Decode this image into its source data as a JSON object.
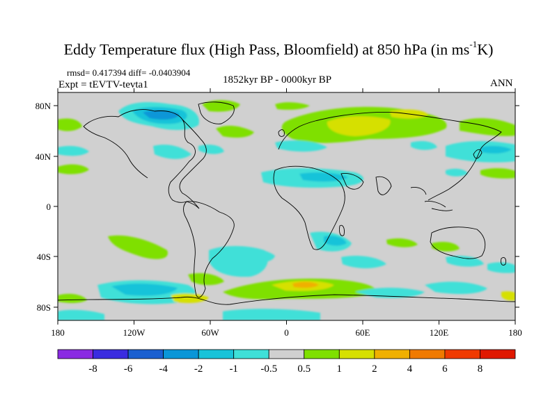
{
  "title": {
    "main": "Eddy Temperature flux (High Pass, Bloomfield) at 850 hPa (in ms",
    "sup": "-1",
    "end": "K)"
  },
  "stats": "rmsd= 0.417394 diff= -0.0403904",
  "expt": "Expt = tEVTV-tevta1",
  "center_label": "1852kyr BP - 0000kyr BP",
  "season": "ANN",
  "lat_labels": [
    "80N",
    "40N",
    "0",
    "40S",
    "80S"
  ],
  "lon_labels": [
    "180",
    "120W",
    "60W",
    "0",
    "60E",
    "120E",
    "180"
  ],
  "colorbar": {
    "labels": [
      "-8",
      "-6",
      "-4",
      "-2",
      "-1",
      "-0.5",
      "0.5",
      "1",
      "2",
      "4",
      "6",
      "8"
    ],
    "colors": [
      "#8a2be2",
      "#3a2ce0",
      "#1a5fd0",
      "#0a96d8",
      "#19c3d9",
      "#3fe0d8",
      "#d0d0d0",
      "#7fe000",
      "#d6e000",
      "#f0b000",
      "#f07a00",
      "#f03a00",
      "#e01800"
    ]
  },
  "colors": {
    "land_neutral": "#d0d0d0",
    "coast": "#000000",
    "positive_weak": "#7fe000",
    "positive_mid": "#d6e000",
    "positive_strong": "#f0b000",
    "negative_weak": "#3fe0d8",
    "negative_mid": "#19c3d9",
    "negative_strong": "#0a96d8"
  }
}
